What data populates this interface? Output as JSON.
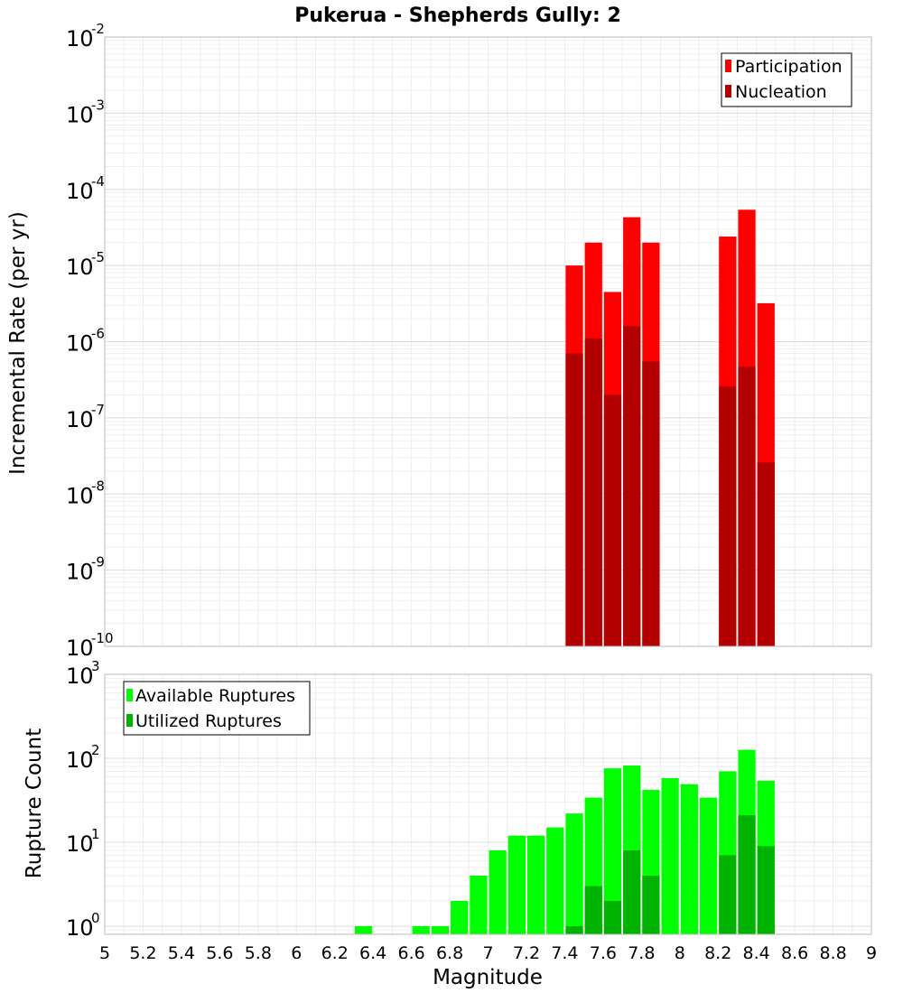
{
  "chart_data": [
    {
      "type": "bar",
      "title": "Pukerua - Shepherds Gully: 2",
      "xlabel": "Magnitude",
      "ylabel": "Incremental Rate (per yr)",
      "y_scale": "log",
      "xlim": [
        5,
        9
      ],
      "ylim": [
        1e-10,
        0.01
      ],
      "grid": true,
      "legend_position": "top-right",
      "bin_width": 0.1,
      "series": [
        {
          "name": "Participation",
          "color": "#ff0000",
          "x": [
            7.45,
            7.55,
            7.65,
            7.75,
            7.85,
            8.25,
            8.35,
            8.45
          ],
          "values": [
            1e-05,
            2e-05,
            4.5e-06,
            4.3e-05,
            2e-05,
            2.4e-05,
            5.4e-05,
            3.2e-06
          ]
        },
        {
          "name": "Nucleation",
          "color": "#b30000",
          "x": [
            7.45,
            7.55,
            7.65,
            7.75,
            7.85,
            8.25,
            8.35,
            8.45
          ],
          "values": [
            7e-07,
            1.1e-06,
            2e-07,
            1.6e-06,
            5.5e-07,
            2.6e-07,
            4.7e-07,
            2.6e-08
          ]
        }
      ]
    },
    {
      "type": "bar",
      "xlabel": "Magnitude",
      "ylabel": "Rupture Count",
      "y_scale": "log",
      "xlim": [
        5,
        9
      ],
      "ylim": [
        0.8,
        1000
      ],
      "grid": true,
      "legend_position": "top-left",
      "bin_width": 0.1,
      "x_ticks": [
        "5",
        "5.2",
        "5.4",
        "5.6",
        "5.8",
        "6",
        "6.2",
        "6.4",
        "6.6",
        "6.8",
        "7",
        "7.2",
        "7.4",
        "7.6",
        "7.8",
        "8",
        "8.2",
        "8.4",
        "8.6",
        "8.8",
        "9"
      ],
      "series": [
        {
          "name": "Available Ruptures",
          "color": "#00ff00",
          "x": [
            6.35,
            6.65,
            6.75,
            6.85,
            6.95,
            7.05,
            7.15,
            7.25,
            7.35,
            7.45,
            7.55,
            7.65,
            7.75,
            7.85,
            7.95,
            8.05,
            8.15,
            8.25,
            8.35,
            8.45
          ],
          "values": [
            1,
            1,
            1,
            2,
            4,
            8,
            12,
            12,
            15,
            22,
            34,
            76,
            82,
            42,
            58,
            49,
            34,
            70,
            126,
            54
          ]
        },
        {
          "name": "Utilized Ruptures",
          "color": "#00b300",
          "x": [
            7.45,
            7.55,
            7.65,
            7.75,
            7.85,
            8.25,
            8.35,
            8.45
          ],
          "values": [
            1,
            3,
            2,
            8,
            4,
            7,
            21,
            9
          ]
        }
      ]
    }
  ]
}
